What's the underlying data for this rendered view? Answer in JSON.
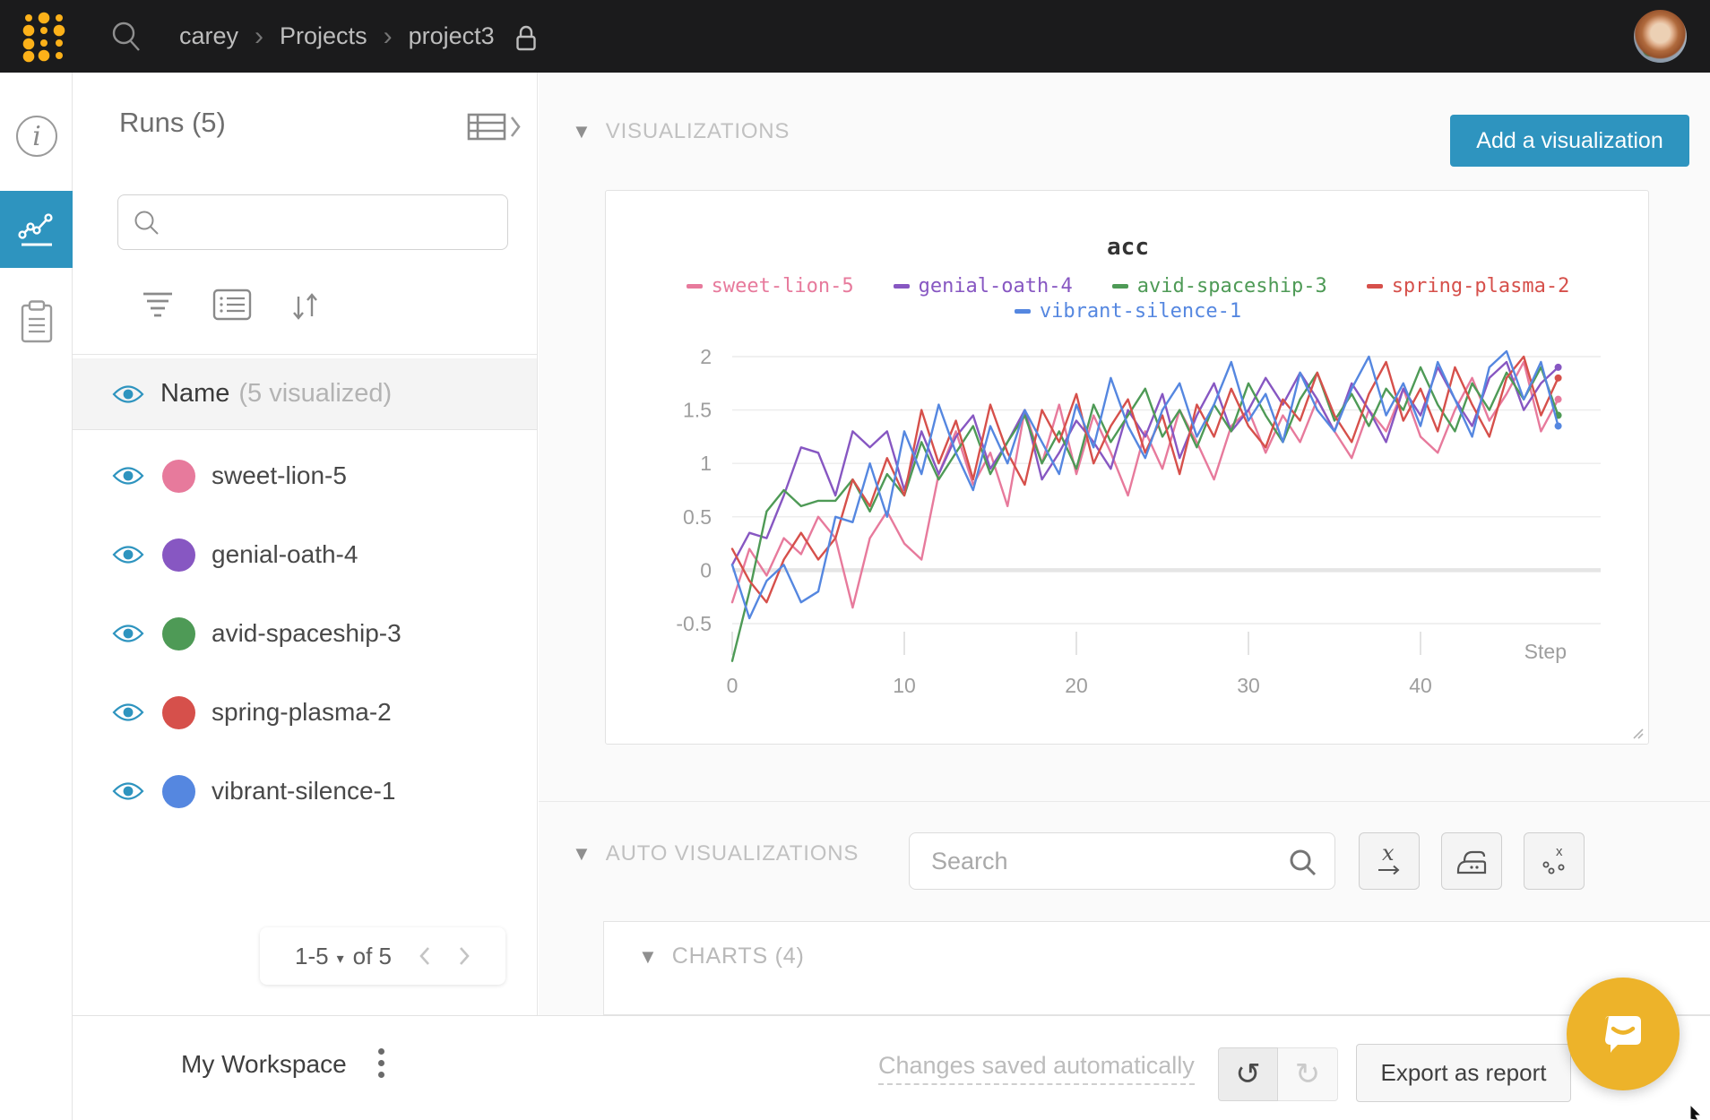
{
  "topbar": {
    "breadcrumb": {
      "user": "carey",
      "section": "Projects",
      "project": "project3"
    }
  },
  "runs_panel": {
    "title": "Runs (5)",
    "search_placeholder": "",
    "name_header": "Name",
    "name_suffix": "(5 visualized)",
    "runs": [
      {
        "name": "sweet-lion-5",
        "color": "#E77A9C"
      },
      {
        "name": "genial-oath-4",
        "color": "#8757C2"
      },
      {
        "name": "avid-spaceship-3",
        "color": "#4E9A56"
      },
      {
        "name": "spring-plasma-2",
        "color": "#D6504B"
      },
      {
        "name": "vibrant-silence-1",
        "color": "#5587E0"
      }
    ],
    "pagination": {
      "range": "1-5",
      "of_label": "of 5"
    }
  },
  "main": {
    "viz_header": "VISUALIZATIONS",
    "add_button": "Add a visualization",
    "autoviz_header": "AUTO VISUALIZATIONS",
    "autoviz_search_placeholder": "Search",
    "charts_header": "CHARTS (4)"
  },
  "bottombar": {
    "workspace": "My Workspace",
    "saved": "Changes saved automatically",
    "export": "Export as report",
    "undo_glyph": "↺",
    "redo_glyph": "↻"
  },
  "colors": {
    "accent": "#2E94BF",
    "topbar_bg": "#1B1B1C",
    "logo_yellow": "#FCB119",
    "intercom": "#EDB32A"
  },
  "chart_data": {
    "type": "line",
    "title": "acc",
    "xlabel": "Step",
    "x_start": 0,
    "x_step": 1,
    "xlim": [
      0,
      49
    ],
    "ylim": [
      -0.95,
      2.15
    ],
    "xticks": [
      0,
      10,
      20,
      30,
      40
    ],
    "yticks": [
      2,
      1.5,
      1,
      0.5,
      0,
      -0.5
    ],
    "grid": true,
    "legend_position": "top",
    "series": [
      {
        "name": "sweet-lion-5",
        "color": "#E77A9C",
        "values": [
          -0.3,
          0.2,
          -0.05,
          0.3,
          0.15,
          0.5,
          0.3,
          -0.35,
          0.3,
          0.55,
          0.25,
          0.1,
          0.9,
          1.3,
          0.8,
          1.1,
          0.6,
          1.5,
          1.0,
          1.55,
          0.9,
          1.45,
          1.1,
          0.7,
          1.3,
          0.95,
          1.5,
          1.2,
          0.85,
          1.35,
          1.5,
          1.1,
          1.45,
          1.2,
          1.6,
          1.3,
          1.05,
          1.5,
          1.3,
          1.7,
          1.25,
          1.1,
          1.5,
          1.8,
          1.4,
          1.65,
          1.95,
          1.3,
          1.6
        ]
      },
      {
        "name": "genial-oath-4",
        "color": "#8757C2",
        "values": [
          0.05,
          0.35,
          0.3,
          0.7,
          1.15,
          1.1,
          0.7,
          1.3,
          1.15,
          1.3,
          0.75,
          1.3,
          0.9,
          1.25,
          1.45,
          0.95,
          1.2,
          1.5,
          0.85,
          1.1,
          1.4,
          1.2,
          0.95,
          1.5,
          1.25,
          1.65,
          1.05,
          1.45,
          1.75,
          1.3,
          1.5,
          1.8,
          1.55,
          1.85,
          1.6,
          1.3,
          1.75,
          1.5,
          1.2,
          1.7,
          1.45,
          1.9,
          1.6,
          1.35,
          1.8,
          1.95,
          1.5,
          1.75,
          1.9
        ]
      },
      {
        "name": "avid-spaceship-3",
        "color": "#4E9A56",
        "values": [
          -0.85,
          -0.2,
          0.55,
          0.75,
          0.6,
          0.65,
          0.65,
          0.85,
          0.55,
          0.9,
          0.7,
          1.2,
          0.85,
          1.1,
          1.35,
          0.9,
          1.2,
          1.45,
          1.0,
          1.3,
          0.95,
          1.55,
          1.2,
          1.45,
          1.7,
          1.25,
          1.5,
          1.15,
          1.55,
          1.3,
          1.75,
          1.45,
          1.2,
          1.6,
          1.85,
          1.4,
          1.65,
          1.35,
          1.7,
          1.5,
          1.9,
          1.55,
          1.3,
          1.75,
          1.5,
          1.85,
          1.6,
          1.9,
          1.45
        ]
      },
      {
        "name": "spring-plasma-2",
        "color": "#D6504B",
        "values": [
          0.2,
          -0.1,
          -0.3,
          0.1,
          0.35,
          0.1,
          0.3,
          0.85,
          0.6,
          1.05,
          0.7,
          1.5,
          1.0,
          1.4,
          0.85,
          1.55,
          1.1,
          0.8,
          1.5,
          1.2,
          1.65,
          1.0,
          1.35,
          1.6,
          1.1,
          1.45,
          0.9,
          1.55,
          1.25,
          1.7,
          1.35,
          1.15,
          1.6,
          1.4,
          1.85,
          1.45,
          1.2,
          1.65,
          1.95,
          1.4,
          1.7,
          1.3,
          1.9,
          1.55,
          1.25,
          1.8,
          2.0,
          1.45,
          1.8
        ]
      },
      {
        "name": "vibrant-silence-1",
        "color": "#5587E0",
        "values": [
          0.05,
          -0.45,
          -0.1,
          0.05,
          -0.3,
          -0.2,
          0.5,
          0.45,
          1.0,
          0.5,
          1.3,
          0.9,
          1.55,
          1.1,
          0.75,
          1.35,
          1.0,
          1.5,
          1.2,
          0.9,
          1.55,
          1.15,
          1.8,
          1.35,
          1.05,
          1.5,
          1.75,
          1.25,
          1.55,
          1.95,
          1.4,
          1.65,
          1.2,
          1.85,
          1.5,
          1.3,
          1.7,
          2.0,
          1.45,
          1.75,
          1.35,
          1.95,
          1.6,
          1.25,
          1.9,
          2.05,
          1.6,
          1.95,
          1.35
        ]
      }
    ]
  }
}
